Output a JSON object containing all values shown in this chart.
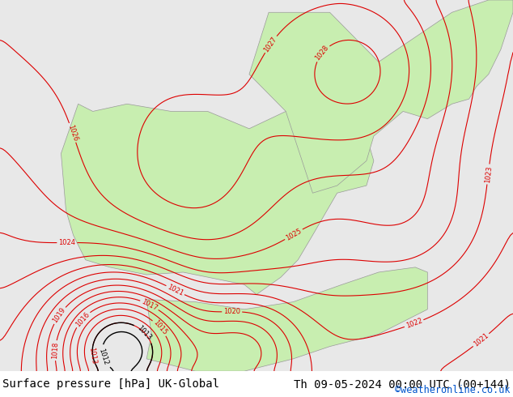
{
  "title_left": "Surface pressure [hPa] UK-Global",
  "title_right": "Th 09-05-2024 00:00 UTC (00+144)",
  "watermark": "©weatheronline.co.uk",
  "bg_color": "#d8d8d8",
  "land_color": "#c8eeb0",
  "sea_color": "#e8e8e8",
  "contour_color_red": "#dd0000",
  "contour_color_black": "#000000",
  "contour_color_blue": "#0000cc",
  "title_fontsize": 10,
  "watermark_color": "#0055cc",
  "bottom_bar_color": "#c8c8c8",
  "figsize": [
    6.34,
    4.9
  ],
  "dpi": 100
}
